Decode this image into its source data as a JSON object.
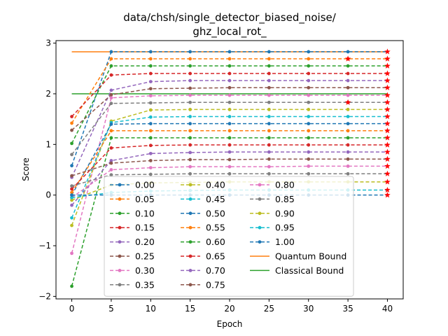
{
  "chart_data": {
    "type": "line",
    "title_line1": "data/chsh/single_detector_biased_noise/",
    "title_line2": "ghz_local_rot_",
    "xlabel": "Epoch",
    "ylabel": "Score",
    "x": [
      0,
      5,
      10,
      15,
      20,
      25,
      30,
      35,
      40
    ],
    "xticks": [
      0,
      5,
      10,
      15,
      20,
      25,
      30,
      35,
      40
    ],
    "yticks": [
      -2,
      -1,
      0,
      1,
      2,
      3
    ],
    "xlim": [
      -2,
      42
    ],
    "ylim": [
      -2.05,
      3.05
    ],
    "grid": false,
    "legend_position": "lower-center",
    "quantum_bound": 2.828,
    "classical_bound": 2.0,
    "series": [
      {
        "name": "0.00",
        "color": "#1f77b4",
        "values": [
          0.58,
          2.83,
          2.83,
          2.83,
          2.83,
          2.83,
          2.83,
          2.83,
          2.83
        ]
      },
      {
        "name": "0.05",
        "color": "#ff7f0e",
        "values": [
          1.42,
          2.69,
          2.69,
          2.69,
          2.69,
          2.69,
          2.69,
          2.69,
          2.69
        ]
      },
      {
        "name": "0.10",
        "color": "#2ca02c",
        "values": [
          1.02,
          2.55,
          2.55,
          2.55,
          2.55,
          2.55,
          2.55,
          2.55,
          2.55
        ]
      },
      {
        "name": "0.15",
        "color": "#d62728",
        "values": [
          1.55,
          2.37,
          2.4,
          2.4,
          2.4,
          2.4,
          2.4,
          2.4,
          2.4
        ]
      },
      {
        "name": "0.20",
        "color": "#9467bd",
        "values": [
          0.35,
          2.07,
          2.24,
          2.26,
          2.26,
          2.26,
          2.26,
          2.26,
          2.26
        ]
      },
      {
        "name": "0.25",
        "color": "#8c564b",
        "values": [
          1.28,
          1.98,
          2.1,
          2.11,
          2.12,
          2.12,
          2.12,
          2.12,
          2.12
        ]
      },
      {
        "name": "0.30",
        "color": "#e377c2",
        "values": [
          -1.15,
          1.92,
          1.96,
          1.97,
          1.97,
          1.97,
          1.97,
          1.97,
          1.97
        ]
      },
      {
        "name": "0.35",
        "color": "#7f7f7f",
        "values": [
          0.8,
          1.81,
          1.82,
          1.83,
          1.83,
          1.83,
          1.83,
          1.83,
          1.83
        ]
      },
      {
        "name": "0.40",
        "color": "#bcbd22",
        "values": [
          -0.6,
          1.46,
          1.68,
          1.69,
          1.69,
          1.69,
          1.69,
          1.69,
          1.69
        ]
      },
      {
        "name": "0.45",
        "color": "#17becf",
        "values": [
          -0.45,
          1.43,
          1.54,
          1.55,
          1.55,
          1.55,
          1.55,
          1.55,
          1.55
        ]
      },
      {
        "name": "0.50",
        "color": "#1f77b4",
        "values": [
          0.0,
          1.4,
          1.41,
          1.41,
          1.41,
          1.41,
          1.41,
          1.41,
          1.41
        ]
      },
      {
        "name": "0.55",
        "color": "#ff7f0e",
        "values": [
          0.05,
          1.27,
          1.27,
          1.27,
          1.27,
          1.27,
          1.27,
          1.27,
          1.27
        ]
      },
      {
        "name": "0.60",
        "color": "#2ca02c",
        "values": [
          -1.8,
          1.13,
          1.13,
          1.13,
          1.13,
          1.13,
          1.13,
          1.13,
          1.13
        ]
      },
      {
        "name": "0.65",
        "color": "#d62728",
        "values": [
          0.12,
          0.93,
          0.98,
          0.99,
          0.99,
          0.99,
          0.99,
          0.99,
          0.99
        ]
      },
      {
        "name": "0.70",
        "color": "#9467bd",
        "values": [
          -0.2,
          0.68,
          0.82,
          0.84,
          0.85,
          0.85,
          0.85,
          0.85,
          0.85
        ]
      },
      {
        "name": "0.75",
        "color": "#8c564b",
        "values": [
          0.38,
          0.63,
          0.68,
          0.7,
          0.7,
          0.71,
          0.71,
          0.71,
          0.71
        ]
      },
      {
        "name": "0.80",
        "color": "#e377c2",
        "values": [
          -0.05,
          0.5,
          0.54,
          0.56,
          0.56,
          0.56,
          0.57,
          0.57,
          0.57
        ]
      },
      {
        "name": "0.85",
        "color": "#7f7f7f",
        "values": [
          0.18,
          0.4,
          0.41,
          0.42,
          0.42,
          0.42,
          0.42,
          0.42,
          0.42
        ]
      },
      {
        "name": "0.90",
        "color": "#bcbd22",
        "values": [
          -0.1,
          0.2,
          0.24,
          0.25,
          0.26,
          0.26,
          0.26,
          0.26,
          0.26
        ]
      },
      {
        "name": "0.95",
        "color": "#17becf",
        "values": [
          -0.05,
          0.05,
          0.08,
          0.09,
          0.1,
          0.1,
          0.1,
          0.1,
          0.1
        ]
      },
      {
        "name": "1.00",
        "color": "#1f77b4",
        "values": [
          0.0,
          0.0,
          0.0,
          0.0,
          0.0,
          0.0,
          0.0,
          0.0,
          0.0
        ]
      }
    ],
    "bounds": [
      {
        "name": "Quantum Bound",
        "color": "#ff7f0e"
      },
      {
        "name": "Classical Bound",
        "color": "#2ca02c"
      }
    ],
    "star_markers": [
      {
        "x": 35,
        "y": 2.69
      },
      {
        "x": 35,
        "y": 1.83
      }
    ]
  }
}
